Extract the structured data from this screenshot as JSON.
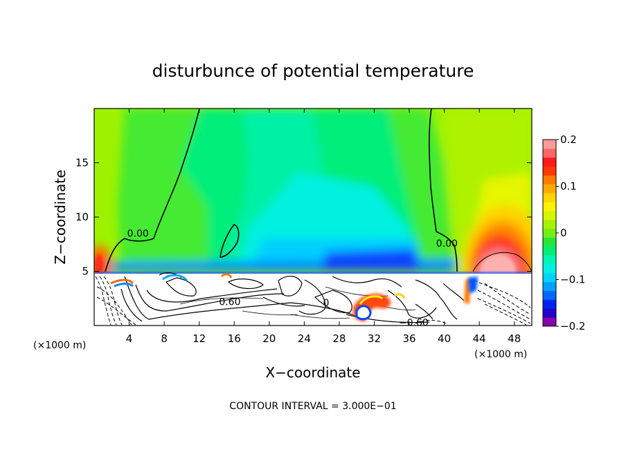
{
  "chart_data": {
    "type": "heatmap",
    "title": "disturbunce of potential temperature",
    "xlabel": "X−coordinate",
    "ylabel": "Z−coordinate",
    "x_unit_left": "(×1000 m)",
    "x_unit_right": "(×1000 m)",
    "xlim": [
      0,
      50
    ],
    "ylim": [
      0,
      20
    ],
    "x_ticks": [
      4,
      8,
      12,
      16,
      20,
      24,
      28,
      32,
      36,
      40,
      44,
      48
    ],
    "x_tick_labels": [
      "4",
      "8",
      "12",
      "16",
      "20",
      "24",
      "28",
      "32",
      "36",
      "40",
      "44",
      "48"
    ],
    "y_ticks": [
      5,
      10,
      15
    ],
    "y_tick_labels": [
      "5",
      "10",
      "15"
    ],
    "colorbar": {
      "range": [
        -0.2,
        0.2
      ],
      "tick_values": [
        0.2,
        0.1,
        0,
        -0.1,
        -0.2
      ],
      "tick_labels": [
        "0.2",
        "0.1",
        "0",
        "−0.1",
        "−0.2"
      ],
      "colors": [
        "#8800aa",
        "#2200cc",
        "#0022ee",
        "#0066ff",
        "#00a2ff",
        "#00d4ff",
        "#00f0e6",
        "#00f5b4",
        "#00ee7a",
        "#22e83c",
        "#77ee11",
        "#a8f200",
        "#d8f500",
        "#fff200",
        "#ffd400",
        "#ffaa00",
        "#ff7a00",
        "#ff3a00",
        "#ff1a1a",
        "#ff6666",
        "#ff9a9a"
      ]
    },
    "contour_labels": [
      {
        "text": "0.00",
        "x": 5.0,
        "z": 8.3
      },
      {
        "text": "0.00",
        "x": 40.3,
        "z": 7.4
      },
      {
        "text": "0.60",
        "x": 15.5,
        "z": 2.0
      },
      {
        "text": "0",
        "x": 26.5,
        "z": 1.9
      },
      {
        "text": "−0.60",
        "x": 36.5,
        "z": 0.1
      }
    ],
    "contour_interval_text": "CONTOUR INTERVAL = 3.000E−01"
  }
}
